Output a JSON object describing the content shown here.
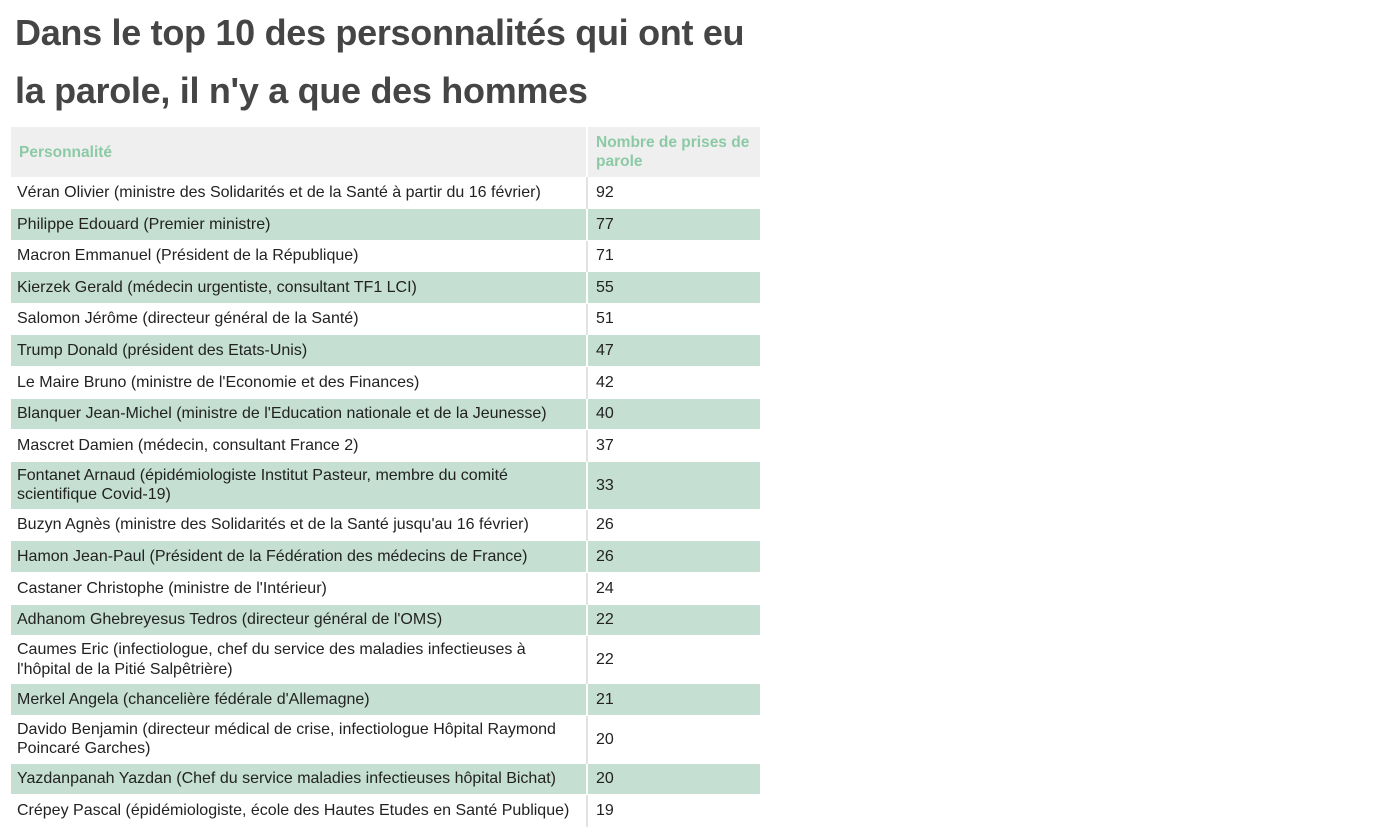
{
  "title": "Dans le top 10 des personnalités qui ont eu la parole, il n'y a que des hommes",
  "table": {
    "headers": [
      "Personnalité",
      "Nombre de prises de parole"
    ],
    "rows": [
      {
        "name": "Véran Olivier (ministre des Solidarités et de la Santé à partir du 16 février)",
        "count": "92"
      },
      {
        "name": "Philippe Edouard (Premier ministre)",
        "count": "77"
      },
      {
        "name": "Macron Emmanuel (Président de la République)",
        "count": "71"
      },
      {
        "name": "Kierzek Gerald (médecin urgentiste, consultant TF1 LCI)",
        "count": "55"
      },
      {
        "name": "Salomon Jérôme (directeur général de la Santé)",
        "count": "51"
      },
      {
        "name": "Trump Donald (président des Etats-Unis)",
        "count": "47"
      },
      {
        "name": "Le Maire Bruno (ministre de l'Economie et des Finances)",
        "count": "42"
      },
      {
        "name": "Blanquer Jean-Michel (ministre de l'Education nationale et de la Jeunesse)",
        "count": "40"
      },
      {
        "name": "Mascret Damien (médecin, consultant France 2)",
        "count": "37"
      },
      {
        "name": "Fontanet Arnaud (épidémiologiste Institut Pasteur, membre du comité scientifique Covid-19)",
        "count": "33"
      },
      {
        "name": "Buzyn Agnès (ministre des Solidarités et de la Santé jusqu'au 16 février)",
        "count": "26"
      },
      {
        "name": "Hamon Jean-Paul (Président de la Fédération des médecins de France)",
        "count": "26"
      },
      {
        "name": "Castaner Christophe (ministre de l'Intérieur)",
        "count": "24"
      },
      {
        "name": "Adhanom Ghebreyesus Tedros (directeur général de l'OMS)",
        "count": "22"
      },
      {
        "name": "Caumes Eric (infectiologue, chef du service des maladies infectieuses à l'hôpital de la Pitié Salpêtrière)",
        "count": "22"
      },
      {
        "name": "Merkel Angela (chancelière fédérale d'Allemagne)",
        "count": "21"
      },
      {
        "name": "Davido Benjamin (directeur médical de crise, infectiologue Hôpital Raymond Poincaré  Garches)",
        "count": "20"
      },
      {
        "name": "Yazdanpanah Yazdan (Chef du service maladies infectieuses hôpital Bichat)",
        "count": "20"
      },
      {
        "name": "Crépey Pascal (épidémiologiste, école des Hautes Etudes en Santé Publique)",
        "count": "19"
      }
    ]
  },
  "colors": {
    "title": "#454545",
    "header_bg": "#efefef",
    "header_text": "#8ccaa6",
    "shaded_row": "#c5dfd2"
  }
}
